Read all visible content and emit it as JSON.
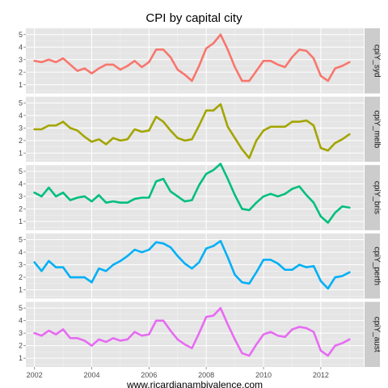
{
  "chart_data": {
    "type": "line",
    "title": "CPI by capital city",
    "caption": "www.ricardianambivalence.com",
    "xlim": [
      2001.7,
      2013.5
    ],
    "x_ticks": [
      2002,
      2004,
      2006,
      2008,
      2010,
      2012
    ],
    "ylim": [
      0.3,
      5.5
    ],
    "y_ticks": [
      1,
      2,
      3,
      4,
      5
    ],
    "grid": true,
    "legend": "none",
    "x": [
      2002.0,
      2002.25,
      2002.5,
      2002.75,
      2003.0,
      2003.25,
      2003.5,
      2003.75,
      2004.0,
      2004.25,
      2004.5,
      2004.75,
      2005.0,
      2005.25,
      2005.5,
      2005.75,
      2006.0,
      2006.25,
      2006.5,
      2006.75,
      2007.0,
      2007.25,
      2007.5,
      2007.75,
      2008.0,
      2008.25,
      2008.5,
      2008.75,
      2009.0,
      2009.25,
      2009.5,
      2009.75,
      2010.0,
      2010.25,
      2010.5,
      2010.75,
      2011.0,
      2011.25,
      2011.5,
      2011.75,
      2012.0,
      2012.25,
      2012.5,
      2012.75,
      2013.0
    ],
    "series": [
      {
        "name": "cpiY_syd",
        "color": "#f8766d",
        "values": [
          2.9,
          2.8,
          3.0,
          2.8,
          3.1,
          2.6,
          2.1,
          2.3,
          1.9,
          2.3,
          2.6,
          2.6,
          2.2,
          2.5,
          2.9,
          2.4,
          2.8,
          3.8,
          3.8,
          3.2,
          2.2,
          1.8,
          1.3,
          2.5,
          3.9,
          4.3,
          5.0,
          3.8,
          2.4,
          1.3,
          1.3,
          2.1,
          2.9,
          2.9,
          2.6,
          2.4,
          3.2,
          3.8,
          3.7,
          3.1,
          1.7,
          1.3,
          2.3,
          2.5,
          2.8
        ]
      },
      {
        "name": "cpiY_melb",
        "color": "#a3a500",
        "values": [
          2.9,
          2.9,
          3.2,
          3.2,
          3.5,
          3.0,
          2.8,
          2.3,
          1.9,
          2.1,
          1.7,
          2.2,
          2.0,
          2.1,
          2.9,
          2.7,
          2.8,
          3.9,
          3.5,
          2.8,
          2.2,
          2.0,
          2.1,
          3.2,
          4.4,
          4.4,
          4.9,
          3.1,
          2.2,
          1.3,
          0.6,
          2.0,
          2.8,
          3.1,
          3.1,
          3.1,
          3.5,
          3.5,
          3.6,
          3.2,
          1.4,
          1.2,
          1.8,
          2.1,
          2.5
        ]
      },
      {
        "name": "cpiY_bris",
        "color": "#00bf7d",
        "values": [
          3.3,
          3.0,
          3.7,
          3.0,
          3.3,
          2.7,
          2.9,
          3.0,
          2.6,
          3.1,
          2.5,
          2.6,
          2.5,
          2.5,
          2.8,
          2.9,
          2.9,
          4.2,
          4.4,
          3.4,
          3.0,
          2.6,
          2.7,
          3.9,
          4.8,
          5.1,
          5.6,
          4.4,
          3.1,
          2.0,
          1.9,
          2.5,
          3.0,
          3.2,
          3.0,
          3.2,
          3.6,
          3.8,
          3.1,
          2.5,
          1.4,
          0.9,
          1.7,
          2.2,
          2.1
        ]
      },
      {
        "name": "cpiY_perth",
        "color": "#00b0f6",
        "values": [
          3.2,
          2.5,
          3.3,
          2.8,
          2.8,
          2.0,
          2.0,
          2.0,
          1.6,
          2.7,
          2.5,
          3.0,
          3.3,
          3.7,
          4.2,
          4.0,
          4.2,
          4.8,
          4.7,
          4.4,
          3.7,
          3.1,
          2.7,
          3.2,
          4.3,
          4.5,
          4.9,
          3.6,
          2.2,
          1.6,
          1.5,
          2.4,
          3.4,
          3.4,
          3.1,
          2.6,
          2.6,
          3.0,
          2.8,
          2.9,
          1.7,
          1.1,
          2.0,
          2.1,
          2.4
        ]
      },
      {
        "name": "cpiY_aust",
        "color": "#e76bf3",
        "values": [
          3.0,
          2.8,
          3.2,
          2.9,
          3.3,
          2.6,
          2.6,
          2.4,
          2.0,
          2.5,
          2.3,
          2.6,
          2.4,
          2.5,
          3.1,
          2.8,
          2.9,
          4.0,
          4.0,
          3.2,
          2.5,
          2.1,
          1.8,
          3.0,
          4.3,
          4.4,
          5.0,
          3.7,
          2.5,
          1.4,
          1.2,
          2.1,
          2.9,
          3.1,
          2.8,
          2.7,
          3.3,
          3.5,
          3.4,
          3.1,
          1.6,
          1.2,
          2.0,
          2.2,
          2.5
        ]
      }
    ]
  }
}
